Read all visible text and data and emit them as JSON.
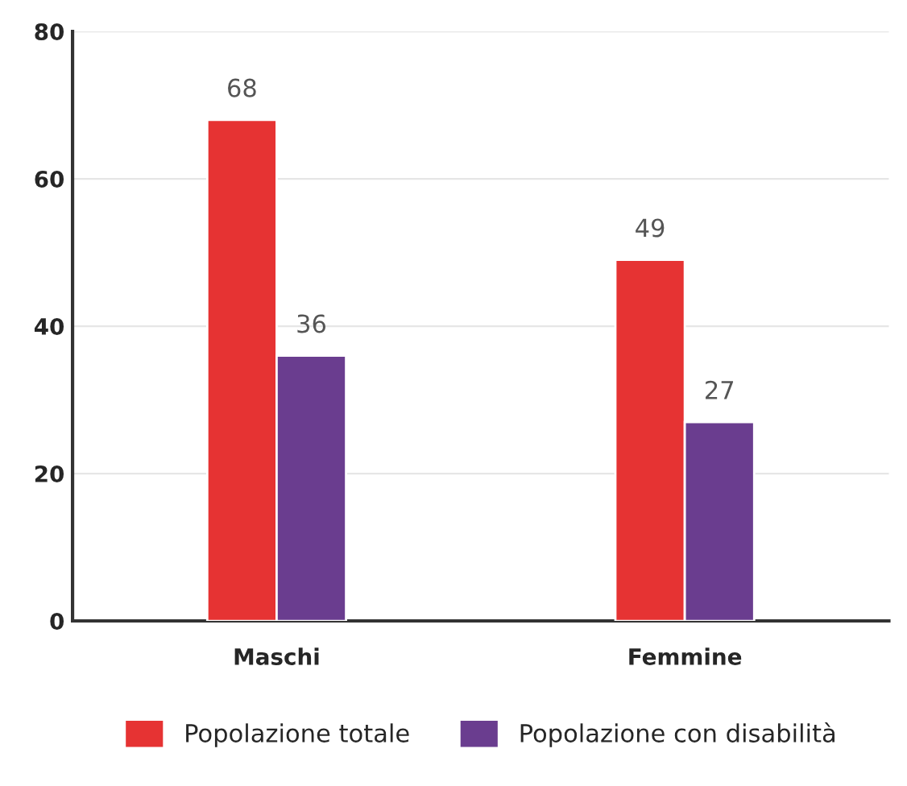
{
  "chart_data": {
    "type": "bar",
    "categories": [
      "Maschi",
      "Femmine"
    ],
    "series": [
      {
        "name": "Popolazione totale",
        "color": "#e63333",
        "values": [
          68,
          49
        ]
      },
      {
        "name": "Popolazione con disabilità",
        "color": "#6a3d8f",
        "values": [
          36,
          27
        ]
      }
    ],
    "ylim": [
      0,
      80
    ],
    "yticks": [
      0,
      20,
      40,
      60,
      80
    ],
    "grid": "y",
    "legend": "bottom",
    "data_labels": true
  }
}
